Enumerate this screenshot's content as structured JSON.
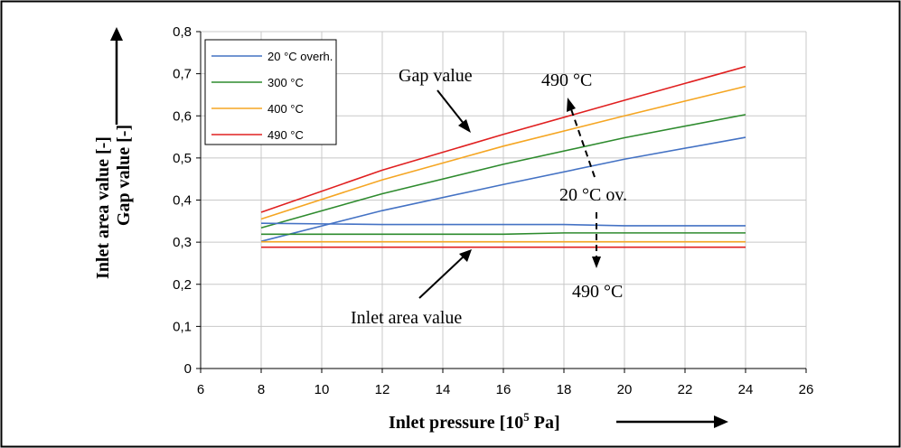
{
  "chart_data": {
    "type": "line",
    "xlabel_main": "Inlet pressure [10",
    "xlabel_sup": "5",
    "xlabel_end": " Pa]",
    "ylabel_line1": "Inlet area value [-]",
    "ylabel_line2": "Gap value [-]",
    "xlim": [
      6,
      26
    ],
    "ylim": [
      0,
      0.8
    ],
    "x_ticks": [
      6,
      8,
      10,
      12,
      14,
      16,
      18,
      20,
      22,
      24,
      26
    ],
    "x_tick_labels": [
      "6",
      "8",
      "10",
      "12",
      "14",
      "16",
      "18",
      "20",
      "22",
      "24",
      "26"
    ],
    "y_ticks": [
      0,
      0.1,
      0.2,
      0.3,
      0.4,
      0.5,
      0.6,
      0.7,
      0.8
    ],
    "y_tick_labels": [
      "0",
      "0,1",
      "0,2",
      "0,3",
      "0,4",
      "0,5",
      "0,6",
      "0,7",
      "0,8"
    ],
    "grid": "horizontal",
    "legend_position": "top-left",
    "series": [
      {
        "name": "20 °C  overh.",
        "color": "#4472C4",
        "group": "gap",
        "x": [
          8,
          12,
          16,
          20,
          24
        ],
        "values": [
          0.302,
          0.375,
          0.437,
          0.497,
          0.549
        ]
      },
      {
        "name": "300 °C",
        "color": "#2E8B2E",
        "group": "gap",
        "x": [
          8,
          12,
          16,
          20,
          24
        ],
        "values": [
          0.334,
          0.415,
          0.485,
          0.548,
          0.603
        ]
      },
      {
        "name": "400 °C",
        "color": "#F5A623",
        "group": "gap",
        "x": [
          8,
          12,
          16,
          20,
          24
        ],
        "values": [
          0.355,
          0.448,
          0.528,
          0.6,
          0.67
        ]
      },
      {
        "name": "490 °C",
        "color": "#E02020",
        "group": "gap",
        "x": [
          8,
          12,
          16,
          20,
          24
        ],
        "values": [
          0.371,
          0.471,
          0.556,
          0.637,
          0.717
        ]
      },
      {
        "name": "20 °C  overh.",
        "color": "#4472C4",
        "group": "inlet",
        "x": [
          8,
          12,
          16,
          18,
          20,
          24
        ],
        "values": [
          0.345,
          0.342,
          0.342,
          0.342,
          0.339,
          0.339
        ]
      },
      {
        "name": "300 °C",
        "color": "#2E8B2E",
        "group": "inlet",
        "x": [
          8,
          12,
          16,
          18,
          20,
          24
        ],
        "values": [
          0.319,
          0.319,
          0.319,
          0.322,
          0.322,
          0.322
        ]
      },
      {
        "name": "400 °C",
        "color": "#F5A623",
        "group": "inlet",
        "x": [
          8,
          12,
          16,
          20,
          24
        ],
        "values": [
          0.301,
          0.301,
          0.301,
          0.301,
          0.301
        ]
      },
      {
        "name": "490 °C",
        "color": "#E02020",
        "group": "inlet",
        "x": [
          8,
          12,
          16,
          20,
          24
        ],
        "values": [
          0.288,
          0.288,
          0.288,
          0.288,
          0.288
        ]
      }
    ],
    "legend": [
      {
        "label": "20 °C  overh.",
        "color": "#4472C4"
      },
      {
        "label": "300 °C",
        "color": "#2E8B2E"
      },
      {
        "label": "400 °C",
        "color": "#F5A623"
      },
      {
        "label": "490 °C",
        "color": "#E02020"
      }
    ],
    "annotations": {
      "gap_value": "Gap value",
      "inlet_area_value": "Inlet area value",
      "top_temp": "490 °C",
      "mid_temp": "20 °C ov.",
      "bottom_temp": "490 °C"
    }
  }
}
